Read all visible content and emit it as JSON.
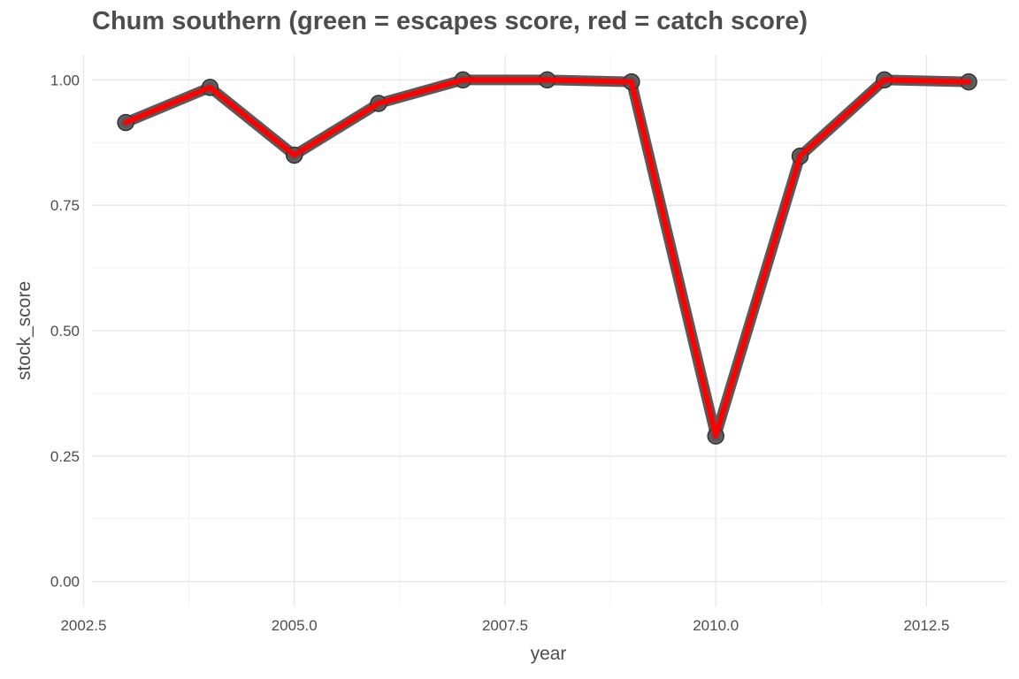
{
  "chart_data": {
    "type": "line",
    "title": "Chum southern (green = escapes score, red = catch score)",
    "xlabel": "year",
    "ylabel": "stock_score",
    "xlim": [
      2002.6,
      2013.45
    ],
    "ylim": [
      -0.05,
      1.05
    ],
    "x_ticks": [
      2002.5,
      2005.0,
      2007.5,
      2010.0,
      2012.5
    ],
    "x_tick_labels": [
      "2002.5",
      "2005.0",
      "2007.5",
      "2010.0",
      "2012.5"
    ],
    "y_ticks": [
      0.0,
      0.25,
      0.5,
      0.75,
      1.0
    ],
    "y_tick_labels": [
      "0.00",
      "0.25",
      "0.50",
      "0.75",
      "1.00"
    ],
    "grid": true,
    "series": [
      {
        "color": "#ff0000",
        "outline_color": "#595959",
        "marker_color": "#595959",
        "x": [
          2003,
          2004,
          2005,
          2006,
          2007,
          2008,
          2009,
          2010,
          2011,
          2012,
          2013
        ],
        "values": [
          0.915,
          0.985,
          0.85,
          0.953,
          1.0,
          1.0,
          0.996,
          0.29,
          0.848,
          1.0,
          0.996
        ]
      }
    ]
  }
}
